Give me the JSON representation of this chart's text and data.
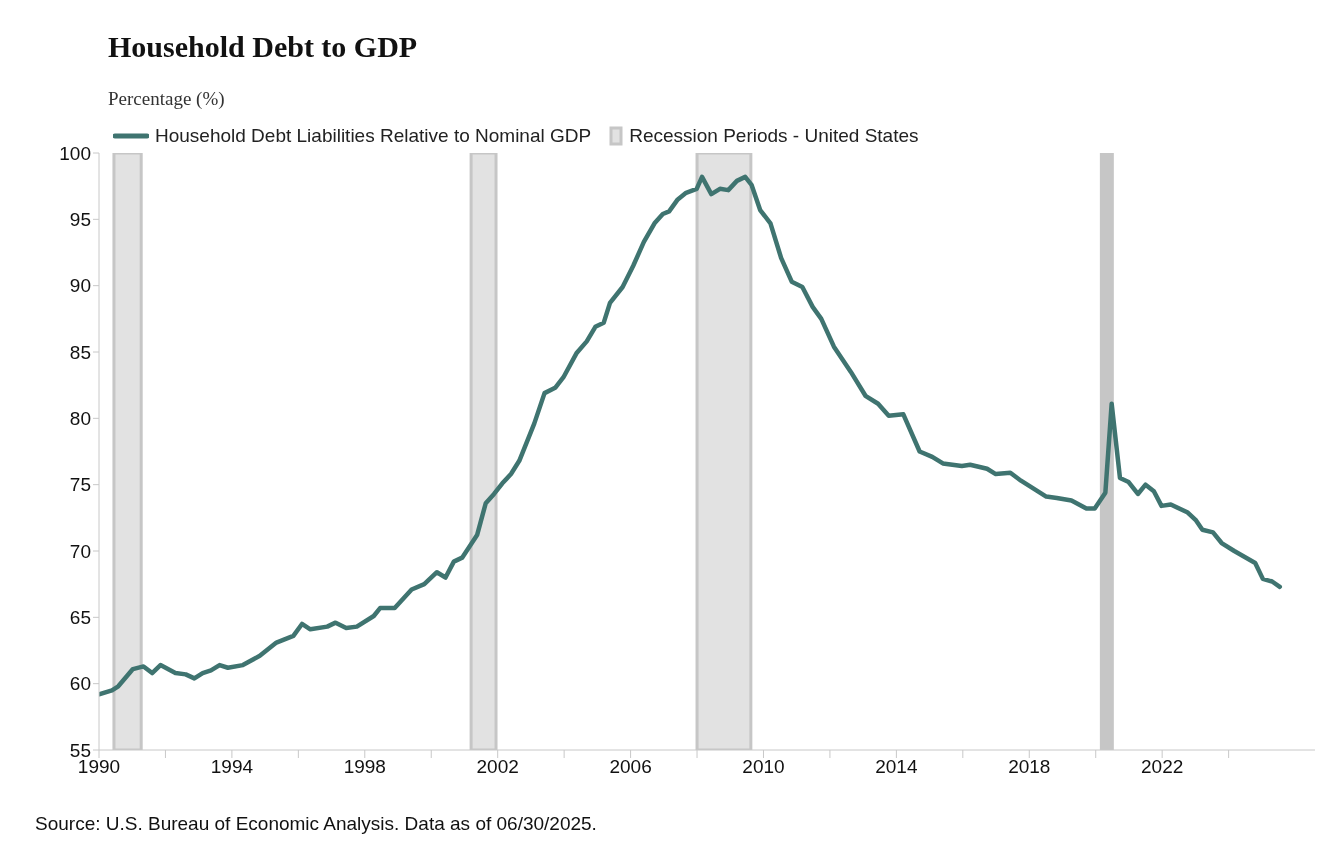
{
  "chart_data": {
    "type": "line",
    "title": "Household Debt to GDP",
    "ylabel": "Percentage (%)",
    "annotations": [
      "Source: U.S. Bureau of Economic Analysis. Data as of 06/30/2025."
    ],
    "legend": "top left",
    "grid": false,
    "xlim": [
      1990,
      2026.6
    ],
    "xticks": [
      1990,
      {
        "value": 1992,
        "label": null
      },
      1994,
      {
        "value": 1996,
        "label": null
      },
      1998,
      {
        "value": 2000,
        "label": null
      },
      2002,
      {
        "value": 2004,
        "label": null
      },
      2006,
      {
        "value": 2008,
        "label": null
      },
      2010,
      {
        "value": 2012,
        "label": null
      },
      2014,
      {
        "value": 2016,
        "label": null
      },
      2018,
      {
        "value": 2020,
        "label": null
      },
      2022,
      {
        "value": 2024,
        "label": null
      }
    ],
    "ylim": [
      55,
      100
    ],
    "yticks": [
      55,
      60,
      65,
      70,
      75,
      80,
      85,
      90,
      95,
      100
    ],
    "bands": [
      {
        "axis": "x",
        "from": 1990.45,
        "to": 1991.27,
        "label": "Recession Periods - United States",
        "color": "#e2e2e2"
      },
      {
        "axis": "x",
        "from": 2001.2,
        "to": 2001.95,
        "color": "#e2e2e2"
      },
      {
        "axis": "x",
        "from": 2008.0,
        "to": 2009.62,
        "color": "#e2e2e2"
      },
      {
        "axis": "x",
        "from": 2020.17,
        "to": 2020.5,
        "color": "#c6c6c6"
      }
    ],
    "series": [
      {
        "name": "Household Debt Liabilities Relative to Nominal GDP",
        "color": "#3f7470",
        "x": [
          1990.0,
          1990.39,
          1990.58,
          1991.02,
          1991.34,
          1991.6,
          1991.85,
          1992.3,
          1992.61,
          1992.87,
          1993.12,
          1993.37,
          1993.63,
          1993.88,
          1994.33,
          1994.84,
          1995.34,
          1995.85,
          1996.11,
          1996.36,
          1996.87,
          1997.12,
          1997.44,
          1997.76,
          1998.27,
          1998.46,
          1998.9,
          1999.41,
          1999.79,
          2000.17,
          2000.43,
          2000.68,
          2000.93,
          2001.38,
          2001.64,
          2001.89,
          2002.14,
          2002.4,
          2002.65,
          2003.1,
          2003.41,
          2003.73,
          2003.98,
          2004.37,
          2004.68,
          2004.94,
          2005.19,
          2005.38,
          2005.76,
          2006.08,
          2006.4,
          2006.72,
          2006.97,
          2007.16,
          2007.42,
          2007.67,
          2007.99,
          2008.15,
          2008.43,
          2008.69,
          2008.94,
          2009.2,
          2009.45,
          2009.64,
          2009.9,
          2010.21,
          2010.53,
          2010.85,
          2011.17,
          2011.48,
          2011.74,
          2012.12,
          2012.63,
          2013.07,
          2013.45,
          2013.77,
          2014.21,
          2014.7,
          2015.08,
          2015.4,
          2015.97,
          2016.22,
          2016.73,
          2016.99,
          2017.43,
          2017.75,
          2018.51,
          2018.83,
          2019.27,
          2019.72,
          2019.97,
          2020.29,
          2020.48,
          2020.73,
          2020.99,
          2021.27,
          2021.5,
          2021.75,
          2021.98,
          2022.26,
          2022.77,
          2023.02,
          2023.21,
          2023.53,
          2023.79,
          2024.17,
          2024.8,
          2025.03,
          2025.31,
          2025.54
        ],
        "values": [
          59.2,
          59.5,
          59.8,
          61.1,
          61.3,
          60.8,
          61.4,
          60.8,
          60.7,
          60.4,
          60.8,
          61.0,
          61.4,
          61.2,
          61.4,
          62.1,
          63.1,
          63.6,
          64.5,
          64.1,
          64.3,
          64.6,
          64.2,
          64.3,
          65.1,
          65.7,
          65.7,
          67.1,
          67.5,
          68.4,
          68.0,
          69.2,
          69.5,
          71.2,
          73.6,
          74.3,
          75.1,
          75.8,
          76.8,
          79.6,
          81.9,
          82.3,
          83.1,
          84.9,
          85.8,
          86.9,
          87.2,
          88.7,
          89.9,
          91.5,
          93.3,
          94.7,
          95.4,
          95.6,
          96.5,
          97.0,
          97.3,
          98.2,
          96.9,
          97.3,
          97.2,
          97.9,
          98.2,
          97.6,
          95.7,
          94.7,
          92.1,
          90.3,
          89.9,
          88.4,
          87.5,
          85.4,
          83.5,
          81.7,
          81.1,
          80.2,
          80.3,
          77.5,
          77.1,
          76.6,
          76.4,
          76.5,
          76.2,
          75.8,
          75.9,
          75.3,
          74.1,
          74.0,
          73.8,
          73.2,
          73.2,
          74.4,
          81.1,
          75.5,
          75.2,
          74.3,
          75.0,
          74.5,
          73.4,
          73.5,
          72.9,
          72.3,
          71.6,
          71.4,
          70.6,
          70.0,
          69.1,
          67.9,
          67.7,
          67.3
        ]
      }
    ]
  }
}
